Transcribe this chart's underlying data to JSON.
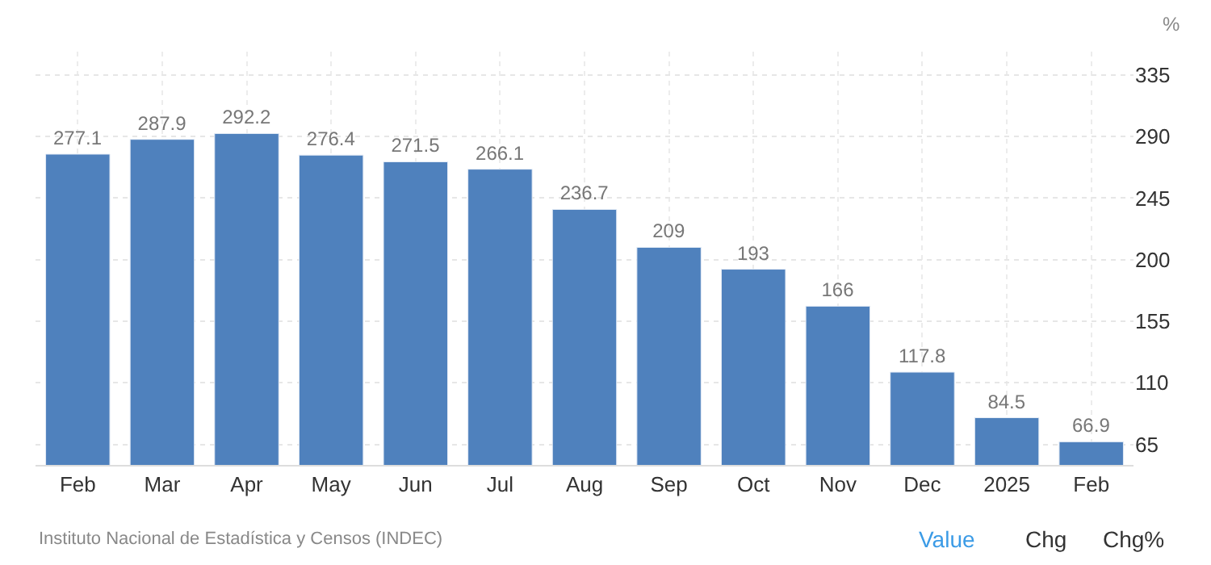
{
  "chart_data": {
    "type": "bar",
    "ylabel": "%",
    "categories": [
      "Feb",
      "Mar",
      "Apr",
      "May",
      "Jun",
      "Jul",
      "Aug",
      "Sep",
      "Oct",
      "Nov",
      "Dec",
      "2025",
      "Feb"
    ],
    "values": [
      277.1,
      287.9,
      292.2,
      276.4,
      271.5,
      266.1,
      236.7,
      209,
      193,
      166,
      117.8,
      84.5,
      66.9
    ],
    "color": "#4f81bd",
    "data_labels": true,
    "ylim": [
      50,
      352
    ],
    "yticks": [
      65,
      110,
      155,
      200,
      245,
      290,
      335
    ],
    "grid": true,
    "annotations": [
      "Instituto Nacional de Estadística y Censos (INDEC)",
      "Value",
      "Chg",
      "Chg%"
    ]
  }
}
